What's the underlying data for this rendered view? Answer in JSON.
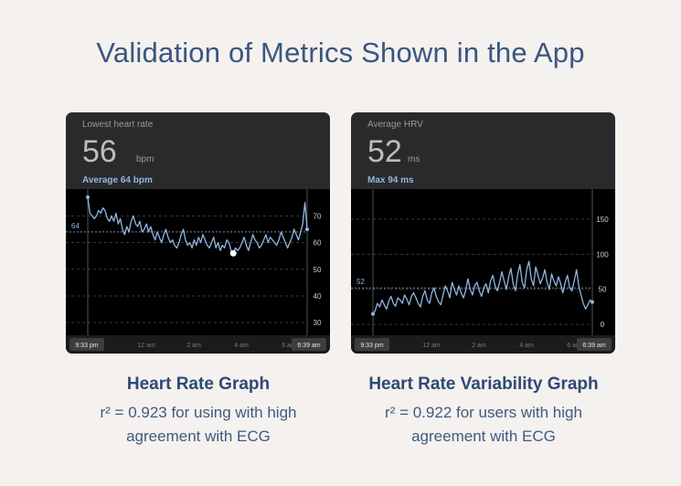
{
  "page_title": "Validation of Metrics Shown in the App",
  "colors": {
    "background": "#f4f1ee",
    "title": "#3a5580",
    "card": "#2a2a2c",
    "line": "#8fb6e0",
    "accent": "#8fb6e0"
  },
  "cards": [
    {
      "metric_label": "Lowest heart rate",
      "value": "56",
      "unit": "bpm",
      "sub_label": "Average 64 bpm",
      "avg_tag": "64",
      "start_time": "9:33 pm",
      "end_time": "6:39 am",
      "caption_title": "Heart Rate Graph",
      "caption_line1": "r² = 0.923 for using with high",
      "caption_line2": "agreement with ECG",
      "chart_data": {
        "type": "line",
        "x_tick_labels": [
          "12 am",
          "2 am",
          "4 am",
          "6 am"
        ],
        "y_ticks": [
          30,
          40,
          50,
          60,
          70
        ],
        "ylim": [
          28,
          78
        ],
        "average": 64,
        "minimum_marker": 56,
        "values": [
          77,
          71,
          70,
          69,
          70,
          72,
          71,
          73,
          72,
          69,
          68,
          70,
          68,
          71,
          67,
          69,
          65,
          63,
          66,
          64,
          68,
          70,
          67,
          66,
          68,
          64,
          65,
          67,
          64,
          66,
          63,
          61,
          64,
          62,
          60,
          63,
          65,
          62,
          60,
          61,
          59,
          58,
          60,
          63,
          65,
          61,
          59,
          60,
          58,
          61,
          59,
          62,
          60,
          63,
          61,
          59,
          58,
          60,
          62,
          58,
          60,
          57,
          59,
          58,
          61,
          60,
          57,
          56,
          58,
          57,
          58,
          60,
          62,
          59,
          57,
          60,
          63,
          61,
          60,
          58,
          59,
          61,
          63,
          60,
          62,
          61,
          60,
          59,
          61,
          64,
          62,
          60,
          58,
          60,
          62,
          65,
          63,
          61,
          64,
          67,
          75,
          65
        ]
      }
    },
    {
      "metric_label": "Average HRV",
      "value": "52",
      "unit": "ms",
      "sub_label": "Max 94 ms",
      "avg_tag": "52",
      "start_time": "9:33 pm",
      "end_time": "6:39 am",
      "caption_title": "Heart Rate Variability Graph",
      "caption_line1": "r² = 0.922 for users with high",
      "caption_line2": "agreement with ECG",
      "chart_data": {
        "type": "line",
        "x_tick_labels": [
          "12 am",
          "2 am",
          "4 am",
          "6 am"
        ],
        "y_ticks": [
          0,
          50,
          100,
          150
        ],
        "ylim": [
          -5,
          185
        ],
        "average": 52,
        "values": [
          15,
          20,
          30,
          25,
          35,
          28,
          22,
          33,
          40,
          30,
          26,
          38,
          35,
          30,
          42,
          36,
          28,
          40,
          45,
          38,
          30,
          25,
          40,
          48,
          35,
          30,
          45,
          52,
          40,
          32,
          28,
          42,
          55,
          48,
          38,
          60,
          50,
          42,
          55,
          45,
          38,
          48,
          65,
          50,
          42,
          55,
          60,
          48,
          40,
          52,
          58,
          45,
          62,
          70,
          55,
          48,
          60,
          75,
          62,
          50,
          68,
          80,
          58,
          48,
          72,
          85,
          60,
          52,
          78,
          90,
          65,
          55,
          82,
          70,
          58,
          66,
          78,
          60,
          50,
          72,
          62,
          55,
          68,
          58,
          45,
          60,
          70,
          52,
          48,
          62,
          78,
          55,
          42,
          30,
          22,
          28,
          35,
          32
        ]
      }
    }
  ]
}
